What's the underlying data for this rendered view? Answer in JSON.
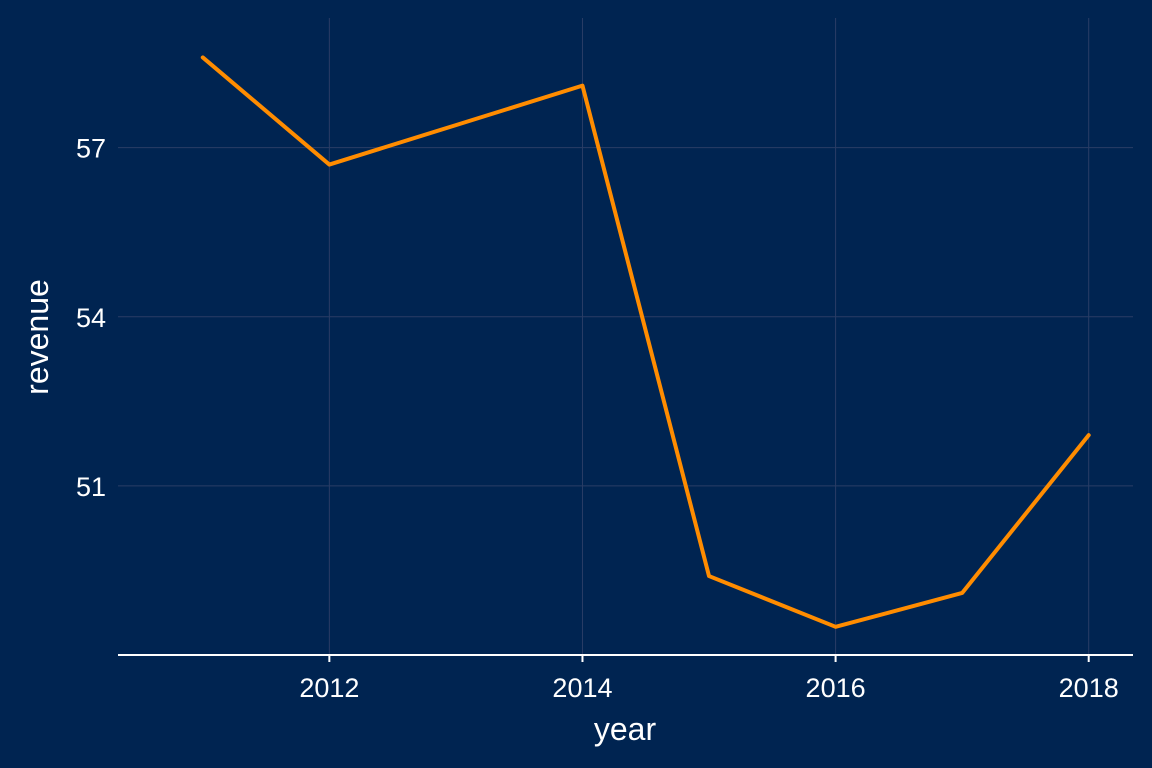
{
  "chart_data": {
    "type": "line",
    "title": "",
    "xlabel": "year",
    "ylabel": "revenue",
    "x": [
      2011,
      2012,
      2013,
      2014,
      2015,
      2016,
      2017,
      2018
    ],
    "series": [
      {
        "name": "",
        "values": [
          58.6,
          56.7,
          57.4,
          58.1,
          49.4,
          48.5,
          49.1,
          51.9
        ]
      }
    ],
    "xlim": [
      2010.33,
      2018.35
    ],
    "ylim": [
      48.0,
      59.3
    ],
    "xticks": [
      2012,
      2014,
      2016,
      2018
    ],
    "yticks": [
      51,
      54,
      57
    ],
    "xtick_labels": [
      "2012",
      "2014",
      "2016",
      "2018"
    ],
    "ytick_labels": [
      "51",
      "54",
      "57"
    ],
    "grid": true,
    "legend": "none",
    "colors": {
      "background": "#002451",
      "line": "#ff8c00",
      "grid": "#2a3d66",
      "axis": "#ffffff",
      "text": "#ffffff"
    }
  }
}
